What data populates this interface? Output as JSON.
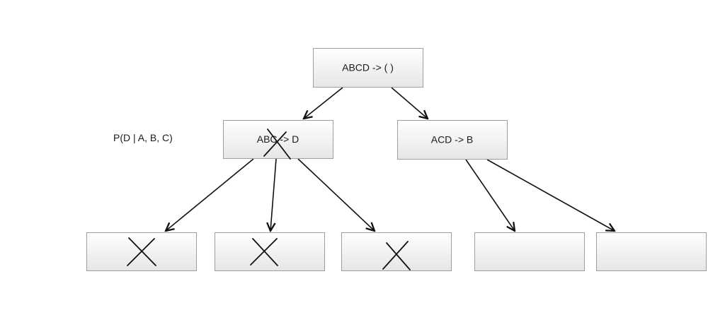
{
  "diagram": {
    "side_label": "P(D | A, B, C)",
    "nodes": {
      "root": {
        "label": "ABCD -> ( )"
      },
      "left": {
        "label": "ABC -> D",
        "crossed": true
      },
      "right": {
        "label": "ACD -> B"
      },
      "leaf1": {
        "label": "",
        "crossed": true
      },
      "leaf2": {
        "label": "",
        "crossed": true
      },
      "leaf3": {
        "label": "",
        "crossed": true
      },
      "leaf4": {
        "label": ""
      },
      "leaf5": {
        "label": ""
      }
    },
    "edges": [
      {
        "from": "root",
        "to": "left"
      },
      {
        "from": "root",
        "to": "right"
      },
      {
        "from": "left",
        "to": "leaf1"
      },
      {
        "from": "left",
        "to": "leaf2"
      },
      {
        "from": "left",
        "to": "leaf3"
      },
      {
        "from": "right",
        "to": "leaf4"
      },
      {
        "from": "right",
        "to": "leaf5"
      }
    ]
  }
}
